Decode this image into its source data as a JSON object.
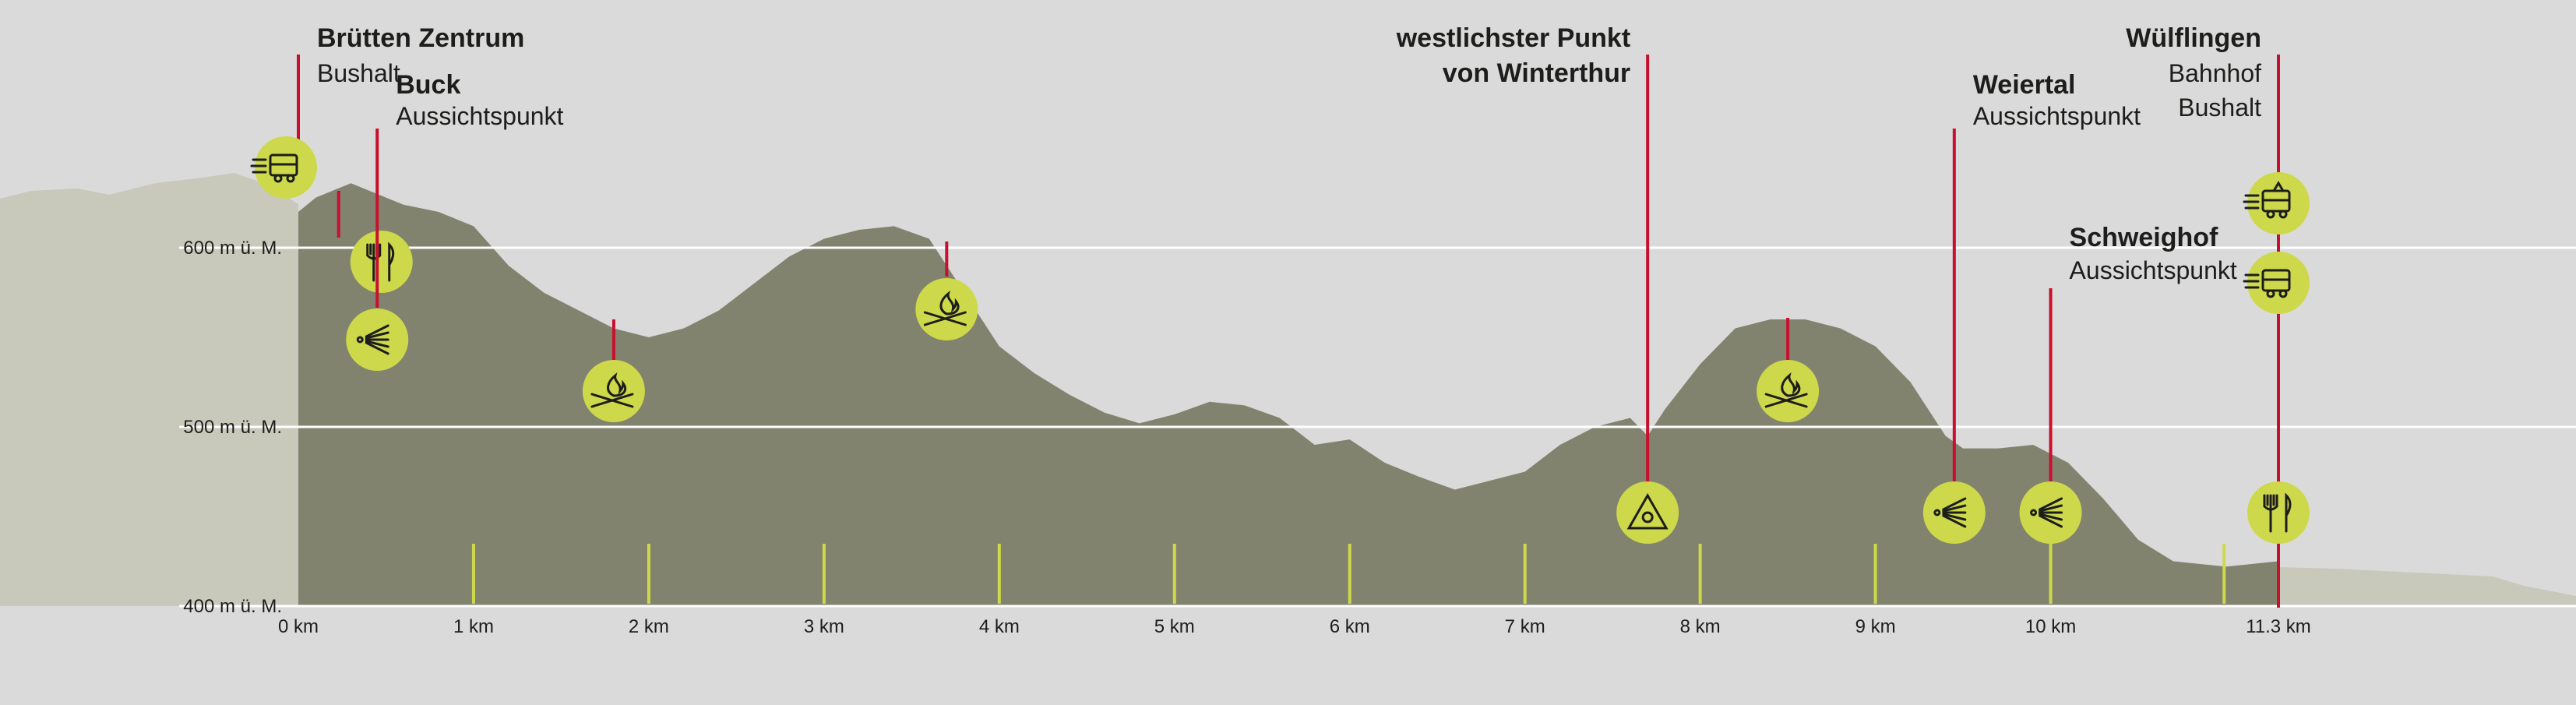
{
  "chart_data": {
    "type": "area",
    "title": "",
    "xlabel": "",
    "ylabel": "",
    "xlim": [
      0,
      11.3
    ],
    "ylim": [
      400,
      650
    ],
    "grid": true,
    "x_ticks": [
      "0 km",
      "1 km",
      "2 km",
      "3 km",
      "4 km",
      "5 km",
      "6 km",
      "7 km",
      "8 km",
      "9 km",
      "10 km",
      "11.3 km"
    ],
    "y_ticks": [
      "400 m ü. M.",
      "500 m ü. M.",
      "600 m ü. M."
    ],
    "y_tick_values": [
      400,
      500,
      600
    ],
    "series": [
      {
        "x": [
          0,
          0.1,
          0.2,
          0.3,
          0.4,
          0.5,
          0.6,
          0.8,
          1.0,
          1.2,
          1.4,
          1.6,
          1.8,
          2.0,
          2.2,
          2.4,
          2.6,
          2.8,
          3.0,
          3.2,
          3.4,
          3.6,
          3.8,
          4.0,
          4.2,
          4.4,
          4.6,
          4.8,
          5.0,
          5.2,
          5.4,
          5.6,
          5.8,
          6.0,
          6.2,
          6.4,
          6.6,
          6.8,
          7.0,
          7.2,
          7.4,
          7.6,
          7.7,
          7.8,
          8.0,
          8.2,
          8.4,
          8.6,
          8.8,
          9.0,
          9.2,
          9.4,
          9.5,
          9.7,
          9.9,
          10.1,
          10.3,
          10.5,
          10.7,
          11.0,
          11.3
        ],
        "y": [
          620,
          628,
          632,
          636,
          632,
          628,
          624,
          620,
          612,
          590,
          575,
          565,
          555,
          550,
          555,
          565,
          580,
          595,
          605,
          610,
          612,
          605,
          575,
          545,
          530,
          518,
          508,
          502,
          507,
          514,
          512,
          505,
          490,
          493,
          480,
          472,
          465,
          470,
          475,
          490,
          500,
          505,
          495,
          510,
          535,
          555,
          560,
          560,
          555,
          545,
          525,
          495,
          488,
          488,
          490,
          480,
          460,
          437,
          425,
          422,
          425
        ]
      }
    ],
    "pois": [
      {
        "name": "Brütten Zentrum",
        "sub": [
          "Bushalt"
        ],
        "x": 0,
        "icons": [
          "bus-icon"
        ]
      },
      {
        "name": "",
        "sub": [],
        "x": 0.23,
        "icons": [
          "restaurant-icon"
        ]
      },
      {
        "name": "Buck",
        "sub": [
          "Aussichtspunkt"
        ],
        "x": 0.45,
        "icons": [
          "viewpoint-icon"
        ]
      },
      {
        "name": "",
        "sub": [],
        "x": 1.8,
        "icons": [
          "fire-icon"
        ]
      },
      {
        "name": "",
        "sub": [],
        "x": 3.7,
        "icons": [
          "fire-icon"
        ]
      },
      {
        "name": "westlichster Punkt",
        "sub": [
          "von Winterthur"
        ],
        "x": 7.7,
        "icons": [
          "landmark-icon"
        ]
      },
      {
        "name": "",
        "sub": [],
        "x": 8.5,
        "icons": [
          "fire-icon"
        ]
      },
      {
        "name": "Weiertal",
        "sub": [
          "Aussichtspunkt"
        ],
        "x": 9.45,
        "icons": [
          "viewpoint-icon"
        ]
      },
      {
        "name": "Schweighof",
        "sub": [
          "Aussichtspunkt"
        ],
        "x": 10.0,
        "icons": [
          "viewpoint-icon"
        ]
      },
      {
        "name": "Wülflingen",
        "sub": [
          "Bahnhof",
          "Bushalt"
        ],
        "x": 11.3,
        "icons": [
          "train-icon",
          "bus-icon",
          "restaurant-icon"
        ]
      }
    ],
    "colors": {
      "background": "#dadadb",
      "profile": "#82836e",
      "context": "#c8c9bb",
      "marker_line": "#c8102e",
      "icon_fill": "#cdd94a",
      "tick": "#cdd94a",
      "grid": "#ffffff",
      "text": "#1d1d1b"
    }
  }
}
